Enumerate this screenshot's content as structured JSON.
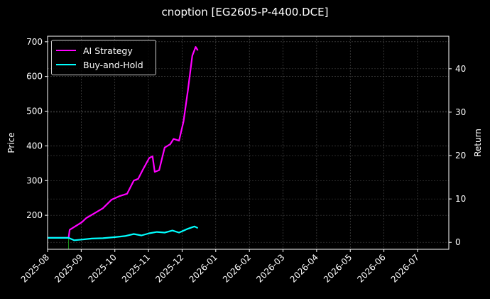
{
  "chart_data": {
    "type": "line",
    "title": "cnoption [EG2605-P-4400.DCE]",
    "xlabel": "",
    "ylabel": "Price",
    "ylabel_right": "Return",
    "ylim": [
      102,
      716
    ],
    "ylim_right": [
      -1.6,
      47.5
    ],
    "yticks": [
      200,
      300,
      400,
      500,
      600,
      700
    ],
    "yticks_right": [
      0,
      10,
      20,
      30,
      40
    ],
    "xticks": [
      "2025-08",
      "2025-09",
      "2025-10",
      "2025-11",
      "2025-12",
      "2026-01",
      "2026-02",
      "2026-03",
      "2026-04",
      "2026-05",
      "2026-06",
      "2026-07"
    ],
    "grid": true,
    "legend_position": "upper left",
    "series": [
      {
        "name": "AI Strategy",
        "color": "#ff00ff",
        "x": [
          "2025-08-01",
          "2025-08-20",
          "2025-08-21",
          "2025-08-28",
          "2025-09-01",
          "2025-09-05",
          "2025-09-12",
          "2025-09-20",
          "2025-09-28",
          "2025-10-05",
          "2025-10-12",
          "2025-10-18",
          "2025-10-22",
          "2025-10-26",
          "2025-11-01",
          "2025-11-04",
          "2025-11-06",
          "2025-11-10",
          "2025-11-15",
          "2025-11-20",
          "2025-11-23",
          "2025-11-28",
          "2025-12-02",
          "2025-12-06",
          "2025-12-10",
          "2025-12-13",
          "2025-12-15"
        ],
        "values": [
          135,
          135,
          158,
          172,
          180,
          192,
          205,
          220,
          245,
          255,
          262,
          300,
          305,
          330,
          365,
          370,
          325,
          330,
          395,
          405,
          420,
          415,
          470,
          560,
          660,
          685,
          675
        ]
      },
      {
        "name": "Buy-and-Hold",
        "color": "#00ffff",
        "x": [
          "2025-08-01",
          "2025-08-20",
          "2025-08-25",
          "2025-09-01",
          "2025-09-10",
          "2025-09-20",
          "2025-10-01",
          "2025-10-10",
          "2025-10-18",
          "2025-10-25",
          "2025-11-01",
          "2025-11-08",
          "2025-11-15",
          "2025-11-22",
          "2025-11-28",
          "2025-12-05",
          "2025-12-12",
          "2025-12-15"
        ],
        "values": [
          135,
          135,
          128,
          130,
          133,
          134,
          137,
          140,
          146,
          142,
          148,
          152,
          150,
          156,
          150,
          160,
          168,
          163
        ]
      }
    ]
  }
}
